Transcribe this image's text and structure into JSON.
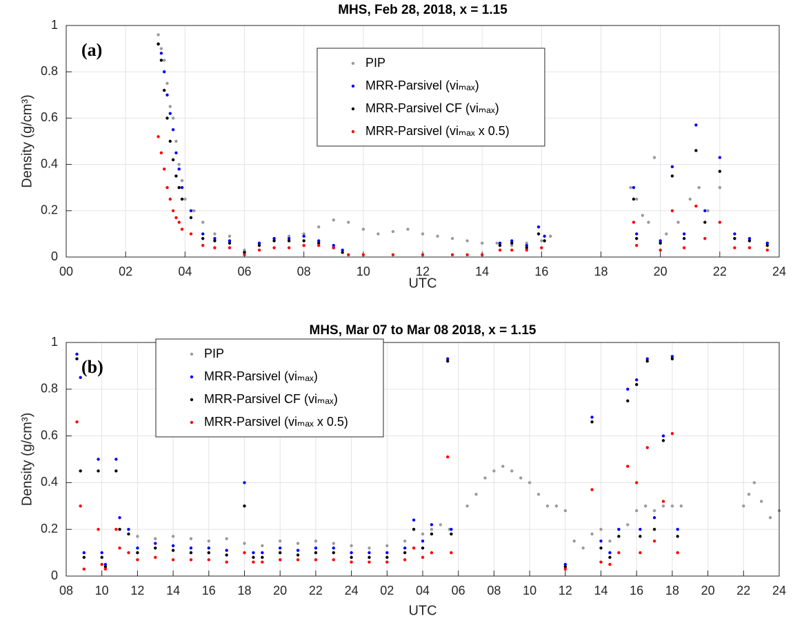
{
  "chart_data": [
    {
      "type": "scatter",
      "title": "MHS, Feb 28, 2018, x = 1.15",
      "annotation": "(a)",
      "xlabel": "UTC",
      "ylabel": "Density (g/cm³)",
      "xlim": [
        0,
        24
      ],
      "ylim": [
        0,
        1
      ],
      "grid": true,
      "legend": "upper center",
      "xticks": [
        {
          "value": 0,
          "label": "00"
        },
        {
          "value": 2,
          "label": "02"
        },
        {
          "value": 4,
          "label": "04"
        },
        {
          "value": 6,
          "label": "06"
        },
        {
          "value": 8,
          "label": "08"
        },
        10,
        12,
        14,
        16,
        18,
        20,
        22,
        24
      ],
      "yticks": [
        0,
        0.2,
        0.4,
        0.6,
        0.8,
        1
      ],
      "series": [
        {
          "name": "PIP",
          "color": "#9a9a9a",
          "x": [
            3.1,
            3.2,
            3.3,
            3.4,
            3.5,
            3.6,
            3.7,
            3.8,
            3.9,
            4.0,
            4.3,
            4.6,
            5.0,
            5.5,
            6.0,
            6.5,
            7.0,
            7.5,
            8.0,
            8.5,
            9.0,
            9.5,
            10.0,
            10.5,
            11.0,
            11.5,
            12.0,
            12.5,
            13.0,
            13.5,
            14.0,
            14.5,
            15.0,
            15.5,
            16.0,
            16.3,
            19.0,
            19.2,
            19.4,
            19.6,
            19.8,
            20.2,
            20.6,
            21.0,
            21.3,
            21.6,
            22.0,
            22.5,
            23.0,
            23.6
          ],
          "values": [
            0.96,
            0.9,
            0.85,
            0.75,
            0.65,
            0.6,
            0.5,
            0.4,
            0.33,
            0.25,
            0.2,
            0.15,
            0.1,
            0.09,
            0.03,
            0.06,
            0.08,
            0.09,
            0.1,
            0.13,
            0.16,
            0.15,
            0.12,
            0.1,
            0.11,
            0.12,
            0.1,
            0.09,
            0.08,
            0.07,
            0.06,
            0.06,
            0.05,
            0.06,
            0.07,
            0.09,
            0.3,
            0.25,
            0.18,
            0.15,
            0.43,
            0.1,
            0.15,
            0.25,
            0.3,
            0.2,
            0.3,
            0.08,
            0.07,
            0.06
          ]
        },
        {
          "name": "MRR-Parsivel (viₘₐₓ)",
          "color": "#0000ff",
          "x": [
            3.1,
            3.2,
            3.3,
            3.4,
            3.5,
            3.6,
            3.7,
            3.8,
            3.9,
            4.2,
            4.6,
            5.0,
            5.5,
            6.0,
            6.5,
            7.0,
            7.5,
            8.0,
            8.5,
            9.0,
            9.3,
            14.6,
            15.0,
            15.5,
            15.9,
            16.1,
            19.1,
            19.2,
            20.0,
            20.4,
            20.8,
            21.2,
            21.5,
            22.0,
            22.5,
            23.0,
            23.6
          ],
          "values": [
            0.92,
            0.88,
            0.8,
            0.7,
            0.62,
            0.55,
            0.45,
            0.38,
            0.3,
            0.2,
            0.1,
            0.08,
            0.07,
            0.02,
            0.06,
            0.08,
            0.08,
            0.09,
            0.07,
            0.05,
            0.03,
            0.06,
            0.07,
            0.05,
            0.13,
            0.09,
            0.3,
            0.1,
            0.07,
            0.39,
            0.1,
            0.57,
            0.2,
            0.43,
            0.1,
            0.08,
            0.06
          ]
        },
        {
          "name": "MRR-Parsivel CF (viₘₐₓ)",
          "color": "#000000",
          "x": [
            3.1,
            3.2,
            3.3,
            3.4,
            3.5,
            3.6,
            3.7,
            3.8,
            3.9,
            4.2,
            4.6,
            5.0,
            5.5,
            6.0,
            6.5,
            7.0,
            7.5,
            8.0,
            8.5,
            9.0,
            9.3,
            14.6,
            15.0,
            15.5,
            15.9,
            16.1,
            19.1,
            19.2,
            20.0,
            20.4,
            20.8,
            21.2,
            21.5,
            22.0,
            22.5,
            23.0,
            23.6
          ],
          "values": [
            0.92,
            0.85,
            0.72,
            0.6,
            0.5,
            0.42,
            0.35,
            0.3,
            0.25,
            0.17,
            0.08,
            0.07,
            0.06,
            0.02,
            0.05,
            0.07,
            0.07,
            0.07,
            0.06,
            0.04,
            0.02,
            0.05,
            0.06,
            0.04,
            0.1,
            0.07,
            0.25,
            0.08,
            0.06,
            0.35,
            0.08,
            0.46,
            0.15,
            0.37,
            0.08,
            0.07,
            0.05
          ]
        },
        {
          "name": "MRR-Parsivel (viₘₐₓ x 0.5)",
          "color": "#ff0000",
          "x": [
            3.1,
            3.2,
            3.3,
            3.4,
            3.5,
            3.6,
            3.7,
            3.8,
            3.9,
            4.2,
            4.6,
            5.0,
            5.5,
            6.0,
            6.5,
            7.0,
            7.5,
            8.0,
            8.5,
            9.0,
            9.5,
            10.0,
            11.0,
            12.0,
            13.0,
            13.5,
            14.0,
            14.6,
            15.0,
            15.5,
            16.0,
            19.1,
            19.2,
            20.0,
            20.4,
            20.8,
            21.2,
            21.5,
            22.0,
            22.5,
            23.0,
            23.6
          ],
          "values": [
            0.52,
            0.45,
            0.38,
            0.3,
            0.25,
            0.2,
            0.17,
            0.15,
            0.12,
            0.1,
            0.05,
            0.04,
            0.04,
            0.01,
            0.03,
            0.04,
            0.04,
            0.05,
            0.05,
            0.04,
            0.01,
            0.01,
            0.01,
            0.01,
            0.01,
            0.01,
            0.01,
            0.03,
            0.03,
            0.03,
            0.04,
            0.15,
            0.05,
            0.03,
            0.2,
            0.04,
            0.22,
            0.08,
            0.15,
            0.04,
            0.04,
            0.03
          ]
        }
      ]
    },
    {
      "type": "scatter",
      "title": "MHS, Mar 07 to Mar 08 2018, x = 1.15",
      "annotation": "(b)",
      "xlabel": "UTC",
      "ylabel": "Density (g/cm³)",
      "xlim": [
        8,
        48
      ],
      "ylim": [
        0,
        1
      ],
      "grid": true,
      "legend": "upper left",
      "xticks": [
        {
          "value": 8,
          "label": "08"
        },
        10,
        12,
        14,
        16,
        18,
        20,
        22,
        24,
        {
          "value": 26,
          "label": "02"
        },
        {
          "value": 28,
          "label": "04"
        },
        {
          "value": 30,
          "label": "06"
        },
        {
          "value": 32,
          "label": "08"
        },
        {
          "value": 34,
          "label": "10"
        },
        {
          "value": 36,
          "label": "12"
        },
        {
          "value": 38,
          "label": "14"
        },
        {
          "value": 40,
          "label": "16"
        },
        {
          "value": 42,
          "label": "18"
        },
        {
          "value": 44,
          "label": "20"
        },
        {
          "value": 46,
          "label": "22"
        },
        {
          "value": 48,
          "label": "24"
        }
      ],
      "yticks": [
        0,
        0.2,
        0.4,
        0.6,
        0.8,
        1
      ],
      "series": [
        {
          "name": "PIP",
          "color": "#9a9a9a",
          "x": [
            12,
            13,
            14,
            15,
            16,
            17,
            18,
            19,
            20,
            21,
            22,
            23,
            24,
            25,
            26,
            27,
            28,
            28.5,
            29,
            29.5,
            30.5,
            31,
            31.5,
            32,
            32.5,
            33,
            33.5,
            34,
            34.5,
            35,
            35.5,
            36,
            36.5,
            37,
            37.5,
            38,
            38.5,
            39,
            39.5,
            40,
            40.5,
            41,
            41.5,
            42,
            42.5,
            46,
            46.3,
            46.6,
            47,
            47.5,
            48
          ],
          "values": [
            0.17,
            0.16,
            0.17,
            0.16,
            0.15,
            0.16,
            0.14,
            0.13,
            0.15,
            0.14,
            0.15,
            0.14,
            0.13,
            0.12,
            0.13,
            0.15,
            0.18,
            0.2,
            0.22,
            0.2,
            0.3,
            0.35,
            0.42,
            0.45,
            0.47,
            0.45,
            0.42,
            0.4,
            0.35,
            0.3,
            0.3,
            0.28,
            0.15,
            0.12,
            0.18,
            0.2,
            0.15,
            0.2,
            0.22,
            0.28,
            0.3,
            0.28,
            0.3,
            0.3,
            0.3,
            0.3,
            0.35,
            0.4,
            0.32,
            0.25,
            0.28
          ]
        },
        {
          "name": "MRR-Parsivel (viₘₐₓ)",
          "color": "#0000ff",
          "x": [
            8.6,
            8.8,
            9.0,
            9.8,
            10.0,
            10.2,
            10.8,
            11.0,
            11.5,
            12,
            13,
            14,
            15,
            16,
            17,
            18,
            18.5,
            19,
            20,
            21,
            22,
            23,
            24,
            25,
            26,
            27,
            27.5,
            28,
            28.5,
            29.4,
            29.6,
            36,
            37.5,
            38,
            38.5,
            39,
            39.5,
            40,
            40.2,
            40.6,
            41,
            41.5,
            42,
            42.3
          ],
          "values": [
            0.95,
            0.85,
            0.1,
            0.5,
            0.1,
            0.05,
            0.5,
            0.25,
            0.2,
            0.12,
            0.14,
            0.13,
            0.12,
            0.12,
            0.11,
            0.4,
            0.1,
            0.1,
            0.12,
            0.11,
            0.12,
            0.12,
            0.1,
            0.1,
            0.1,
            0.12,
            0.24,
            0.15,
            0.22,
            0.93,
            0.2,
            0.05,
            0.68,
            0.15,
            0.1,
            0.2,
            0.8,
            0.84,
            0.2,
            0.93,
            0.25,
            0.6,
            0.94,
            0.2
          ]
        },
        {
          "name": "MRR-Parsivel CF (viₘₐₓ)",
          "color": "#000000",
          "x": [
            8.6,
            8.8,
            9.0,
            9.8,
            10.0,
            10.2,
            10.8,
            11.0,
            11.5,
            12,
            13,
            14,
            15,
            16,
            17,
            18,
            18.5,
            19,
            20,
            21,
            22,
            23,
            24,
            25,
            26,
            27,
            27.5,
            28,
            28.5,
            29.4,
            29.6,
            36,
            37.5,
            38,
            38.5,
            39,
            39.5,
            40,
            40.2,
            40.6,
            41,
            41.5,
            42,
            42.3
          ],
          "values": [
            0.93,
            0.45,
            0.08,
            0.45,
            0.08,
            0.04,
            0.45,
            0.2,
            0.18,
            0.1,
            0.12,
            0.11,
            0.1,
            0.1,
            0.09,
            0.3,
            0.08,
            0.08,
            0.1,
            0.09,
            0.1,
            0.1,
            0.08,
            0.08,
            0.08,
            0.1,
            0.2,
            0.12,
            0.18,
            0.92,
            0.18,
            0.04,
            0.66,
            0.12,
            0.08,
            0.17,
            0.75,
            0.82,
            0.17,
            0.92,
            0.2,
            0.58,
            0.93,
            0.17
          ]
        },
        {
          "name": "MRR-Parsivel (viₘₐₓ x 0.5)",
          "color": "#ff0000",
          "x": [
            8.6,
            8.8,
            9.0,
            9.8,
            10.0,
            10.2,
            10.8,
            11.0,
            11.5,
            12,
            13,
            14,
            15,
            16,
            17,
            18,
            18.5,
            19,
            20,
            21,
            22,
            23,
            24,
            25,
            26,
            27,
            27.5,
            28,
            28.5,
            29.4,
            29.6,
            36,
            37.5,
            38,
            38.5,
            39,
            39.5,
            40,
            40.2,
            40.6,
            41,
            41.5,
            42,
            42.3
          ],
          "values": [
            0.66,
            0.3,
            0.03,
            0.2,
            0.05,
            0.03,
            0.2,
            0.12,
            0.1,
            0.07,
            0.08,
            0.07,
            0.07,
            0.07,
            0.06,
            0.1,
            0.06,
            0.06,
            0.07,
            0.07,
            0.07,
            0.07,
            0.06,
            0.06,
            0.06,
            0.07,
            0.12,
            0.08,
            0.1,
            0.51,
            0.1,
            0.03,
            0.37,
            0.06,
            0.05,
            0.1,
            0.47,
            0.4,
            0.1,
            0.55,
            0.15,
            0.32,
            0.61,
            0.1
          ]
        }
      ]
    }
  ]
}
